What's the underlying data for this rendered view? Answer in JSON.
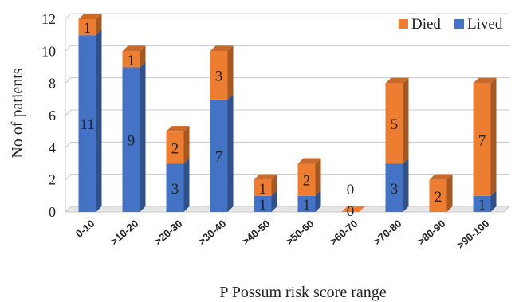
{
  "chart_data": {
    "type": "bar",
    "stacked": true,
    "categories": [
      "0-10",
      ">10-20",
      ">20-30",
      ">30-40",
      ">40-50",
      ">50-60",
      ">60-70",
      ">70-80",
      ">80-90",
      ">90-100"
    ],
    "series": [
      {
        "name": "Lived",
        "values": [
          11,
          9,
          3,
          7,
          1,
          1,
          0,
          3,
          0,
          1
        ],
        "color": "#4472C4"
      },
      {
        "name": "Died",
        "values": [
          1,
          1,
          2,
          3,
          1,
          2,
          0,
          5,
          2,
          7
        ],
        "color": "#ED7D31"
      }
    ],
    "ylim": [
      0,
      12
    ],
    "yticks": [
      0,
      2,
      4,
      6,
      8,
      10,
      12
    ],
    "xlabel": "P Possum risk score range",
    "ylabel": "No of patients",
    "legend_position": "top-right",
    "legend_order": [
      "Died",
      "Lived"
    ]
  }
}
